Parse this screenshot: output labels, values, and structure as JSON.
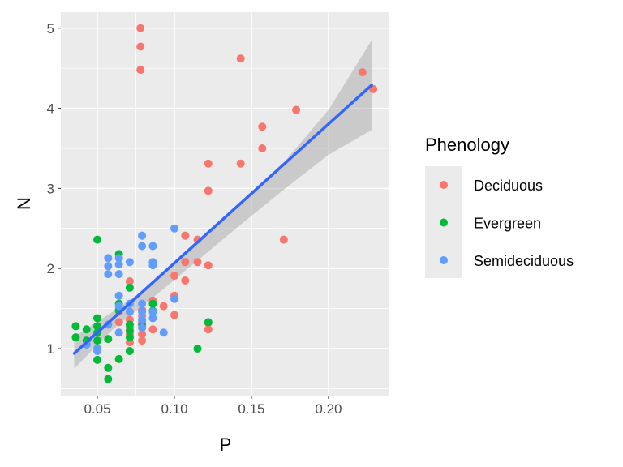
{
  "chart_data": {
    "type": "scatter",
    "xlabel": "P",
    "ylabel": "N",
    "xlim": [
      0.0263,
      0.2395
    ],
    "ylim": [
      0.413,
      5.2
    ],
    "xticks": [
      {
        "v": 0.05,
        "label": "0.05"
      },
      {
        "v": 0.1,
        "label": "0.10"
      },
      {
        "v": 0.15,
        "label": "0.15"
      },
      {
        "v": 0.2,
        "label": "0.20"
      }
    ],
    "yticks": [
      {
        "v": 1,
        "label": "1"
      },
      {
        "v": 2,
        "label": "2"
      },
      {
        "v": 3,
        "label": "3"
      },
      {
        "v": 4,
        "label": "4"
      },
      {
        "v": 5,
        "label": "5"
      }
    ],
    "grid": true,
    "legend": {
      "title": "Phenology",
      "placement": "right"
    },
    "series": [
      {
        "name": "Deciduous",
        "color": "#F8766D",
        "points": [
          [
            0.078,
            5.0
          ],
          [
            0.078,
            4.77
          ],
          [
            0.078,
            4.48
          ],
          [
            0.143,
            4.62
          ],
          [
            0.222,
            4.45
          ],
          [
            0.229,
            4.24
          ],
          [
            0.179,
            3.98
          ],
          [
            0.157,
            3.77
          ],
          [
            0.157,
            3.5
          ],
          [
            0.143,
            3.31
          ],
          [
            0.122,
            3.31
          ],
          [
            0.122,
            2.97
          ],
          [
            0.171,
            2.36
          ],
          [
            0.115,
            2.36
          ],
          [
            0.107,
            2.41
          ],
          [
            0.115,
            2.08
          ],
          [
            0.107,
            2.08
          ],
          [
            0.122,
            2.04
          ],
          [
            0.1,
            1.91
          ],
          [
            0.107,
            1.85
          ],
          [
            0.071,
            1.84
          ],
          [
            0.1,
            1.66
          ],
          [
            0.1,
            1.42
          ],
          [
            0.093,
            1.53
          ],
          [
            0.086,
            1.6
          ],
          [
            0.086,
            1.24
          ],
          [
            0.079,
            1.48
          ],
          [
            0.079,
            1.41
          ],
          [
            0.079,
            1.34
          ],
          [
            0.079,
            1.26
          ],
          [
            0.079,
            1.18
          ],
          [
            0.079,
            1.1
          ],
          [
            0.071,
            1.36
          ],
          [
            0.071,
            1.26
          ],
          [
            0.071,
            1.18
          ],
          [
            0.071,
            1.08
          ],
          [
            0.064,
            1.46
          ],
          [
            0.064,
            1.33
          ],
          [
            0.122,
            1.24
          ],
          [
            0.122,
            1.32
          ]
        ]
      },
      {
        "name": "Evergreen",
        "color": "#00BA38",
        "points": [
          [
            0.05,
            2.36
          ],
          [
            0.064,
            2.18
          ],
          [
            0.071,
            1.76
          ],
          [
            0.036,
            1.28
          ],
          [
            0.036,
            1.14
          ],
          [
            0.043,
            1.24
          ],
          [
            0.05,
            1.38
          ],
          [
            0.05,
            1.28
          ],
          [
            0.05,
            1.2
          ],
          [
            0.05,
            1.1
          ],
          [
            0.05,
            0.86
          ],
          [
            0.057,
            0.76
          ],
          [
            0.057,
            0.62
          ],
          [
            0.064,
            0.87
          ],
          [
            0.071,
            0.97
          ],
          [
            0.071,
            1.3
          ],
          [
            0.071,
            1.22
          ],
          [
            0.071,
            1.14
          ],
          [
            0.079,
            1.3
          ],
          [
            0.086,
            1.56
          ],
          [
            0.086,
            1.47
          ],
          [
            0.064,
            1.56
          ],
          [
            0.064,
            1.48
          ],
          [
            0.115,
            1.0
          ],
          [
            0.122,
            1.33
          ],
          [
            0.057,
            1.12
          ],
          [
            0.043,
            1.1
          ]
        ]
      },
      {
        "name": "Semideciduous",
        "color": "#619CFF",
        "points": [
          [
            0.1,
            2.5
          ],
          [
            0.079,
            2.41
          ],
          [
            0.079,
            2.28
          ],
          [
            0.086,
            2.28
          ],
          [
            0.086,
            2.08
          ],
          [
            0.086,
            2.04
          ],
          [
            0.071,
            2.08
          ],
          [
            0.057,
            2.13
          ],
          [
            0.057,
            2.03
          ],
          [
            0.057,
            1.93
          ],
          [
            0.064,
            2.13
          ],
          [
            0.064,
            2.05
          ],
          [
            0.064,
            1.93
          ],
          [
            0.064,
            1.66
          ],
          [
            0.064,
            1.53
          ],
          [
            0.071,
            1.56
          ],
          [
            0.071,
            1.46
          ],
          [
            0.079,
            1.56
          ],
          [
            0.079,
            1.46
          ],
          [
            0.079,
            1.36
          ],
          [
            0.079,
            1.26
          ],
          [
            0.086,
            1.46
          ],
          [
            0.086,
            1.38
          ],
          [
            0.093,
            1.2
          ],
          [
            0.1,
            1.62
          ],
          [
            0.05,
            1.0
          ],
          [
            0.05,
            0.97
          ],
          [
            0.043,
            1.05
          ],
          [
            0.057,
            1.3
          ],
          [
            0.064,
            1.2
          ]
        ]
      }
    ],
    "fit": {
      "color": "#3366FF",
      "x": [
        0.035,
        0.228
      ],
      "y": [
        0.94,
        4.29
      ]
    },
    "ribbon": {
      "x": [
        0.035,
        0.06,
        0.085,
        0.11,
        0.14,
        0.17,
        0.2,
        0.228
      ],
      "lower": [
        0.75,
        1.24,
        1.62,
        2.02,
        2.5,
        2.97,
        3.42,
        3.73
      ],
      "upper": [
        1.15,
        1.46,
        1.8,
        2.23,
        2.75,
        3.3,
        3.98,
        4.85
      ]
    }
  }
}
